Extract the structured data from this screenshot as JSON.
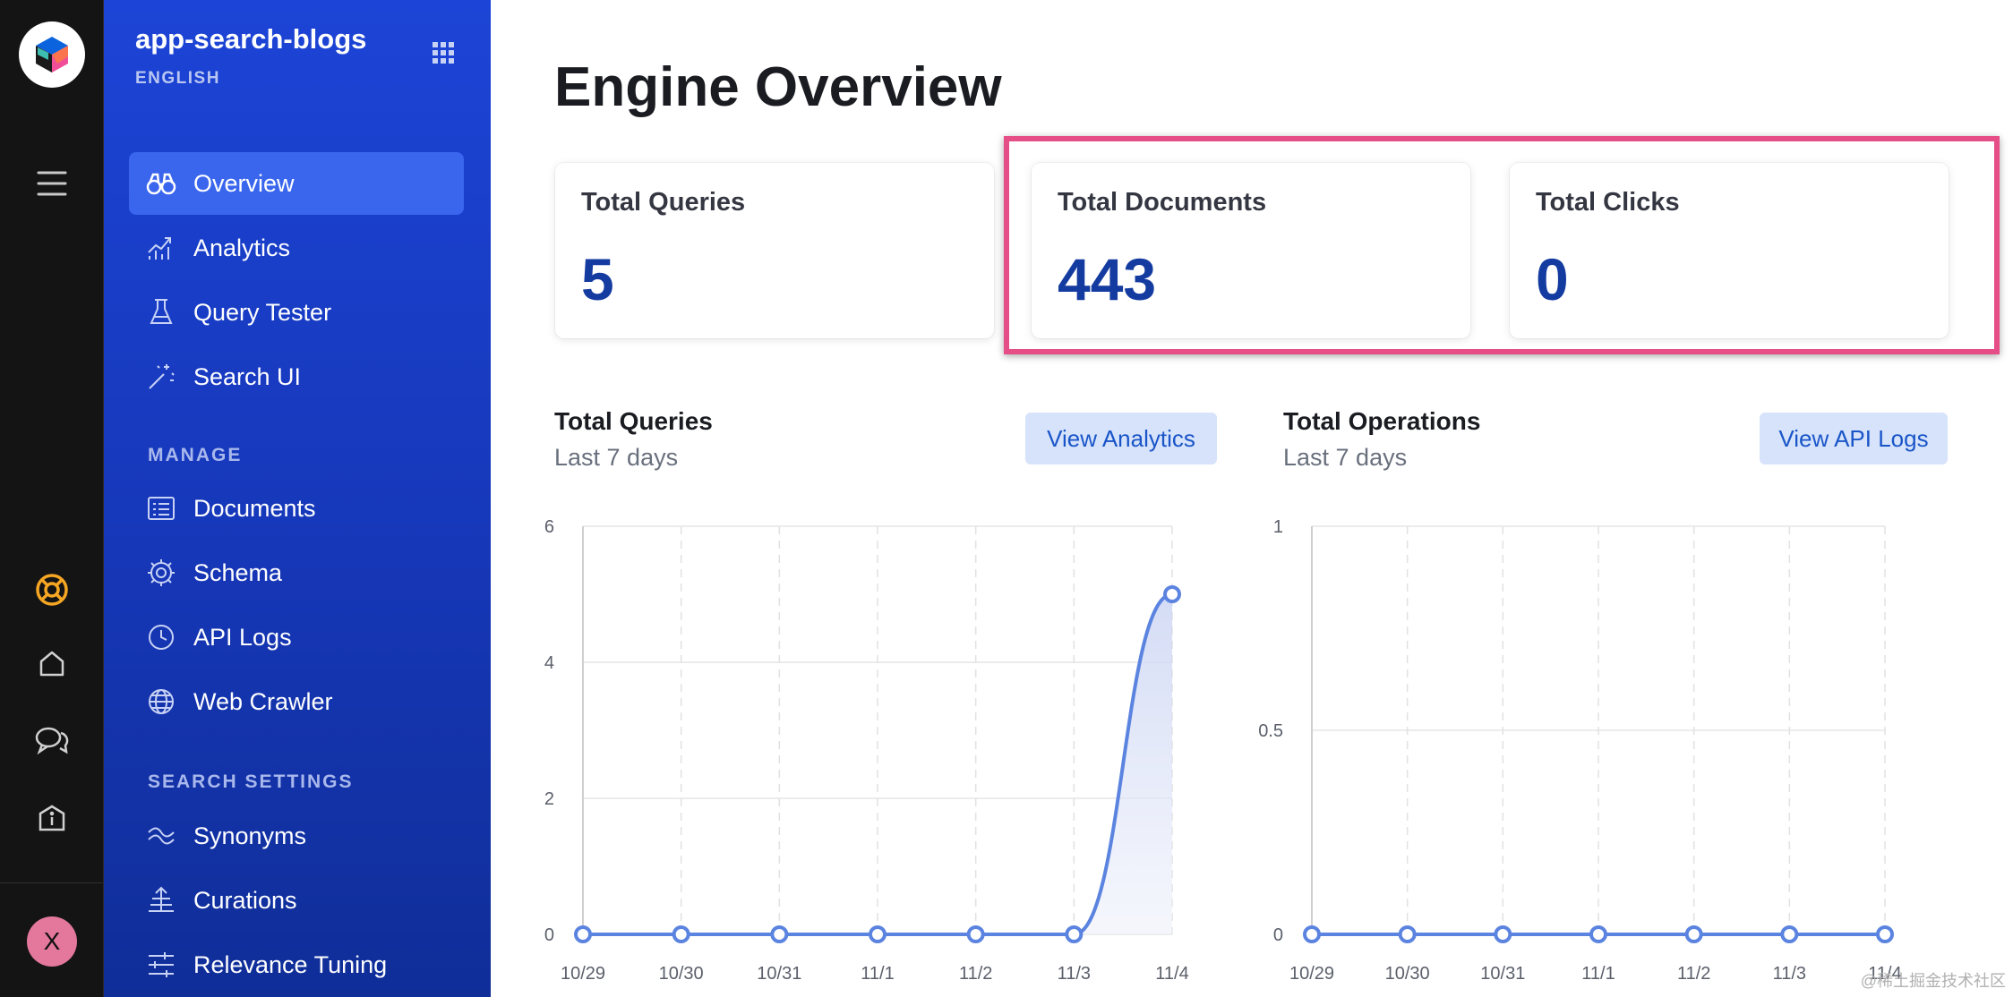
{
  "app": {
    "engine_name": "app-search-blogs",
    "engine_language": "ENGLISH",
    "avatar_initial": "X"
  },
  "sidebar": {
    "items": [
      {
        "label": "Overview",
        "icon": "binoculars-icon",
        "active": true
      },
      {
        "label": "Analytics",
        "icon": "analytics-icon"
      },
      {
        "label": "Query Tester",
        "icon": "flask-icon"
      },
      {
        "label": "Search UI",
        "icon": "magic-wand-icon"
      }
    ],
    "sections": [
      {
        "title": "MANAGE",
        "items": [
          {
            "label": "Documents",
            "icon": "documents-icon"
          },
          {
            "label": "Schema",
            "icon": "gear-icon"
          },
          {
            "label": "API Logs",
            "icon": "clock-icon"
          },
          {
            "label": "Web Crawler",
            "icon": "globe-icon"
          }
        ]
      },
      {
        "title": "SEARCH SETTINGS",
        "items": [
          {
            "label": "Synonyms",
            "icon": "synonyms-icon"
          },
          {
            "label": "Curations",
            "icon": "curations-icon"
          },
          {
            "label": "Relevance Tuning",
            "icon": "sliders-icon"
          }
        ]
      }
    ]
  },
  "main": {
    "title": "Engine Overview",
    "stats": [
      {
        "label": "Total Queries",
        "value": "5"
      },
      {
        "label": "Total Documents",
        "value": "443"
      },
      {
        "label": "Total Clicks",
        "value": "0"
      }
    ],
    "charts": [
      {
        "title": "Total Queries",
        "subtitle": "Last 7 days",
        "button": "View Analytics"
      },
      {
        "title": "Total Operations",
        "subtitle": "Last 7 days",
        "button": "View API Logs"
      }
    ]
  },
  "watermark": "@稀土掘金技术社区",
  "colors": {
    "sidebar": "#1c44d6",
    "accent": "#143ba0",
    "highlight": "#e54e86",
    "line": "#5b84e0"
  },
  "chart_data": [
    {
      "type": "area",
      "x": [
        "10/29",
        "10/30",
        "10/31",
        "11/1",
        "11/2",
        "11/3",
        "11/4"
      ],
      "series": [
        {
          "values": [
            0,
            0,
            0,
            0,
            0,
            0,
            5
          ]
        }
      ],
      "ylim": [
        0,
        6
      ],
      "yticks": [
        0,
        2,
        4,
        6
      ],
      "grid": true
    },
    {
      "type": "line",
      "x": [
        "10/29",
        "10/30",
        "10/31",
        "11/1",
        "11/2",
        "11/3",
        "11/4"
      ],
      "series": [
        {
          "values": [
            0,
            0,
            0,
            0,
            0,
            0,
            0
          ]
        }
      ],
      "ylim": [
        0,
        1
      ],
      "yticks": [
        0,
        0.5,
        1
      ],
      "grid": true
    }
  ]
}
